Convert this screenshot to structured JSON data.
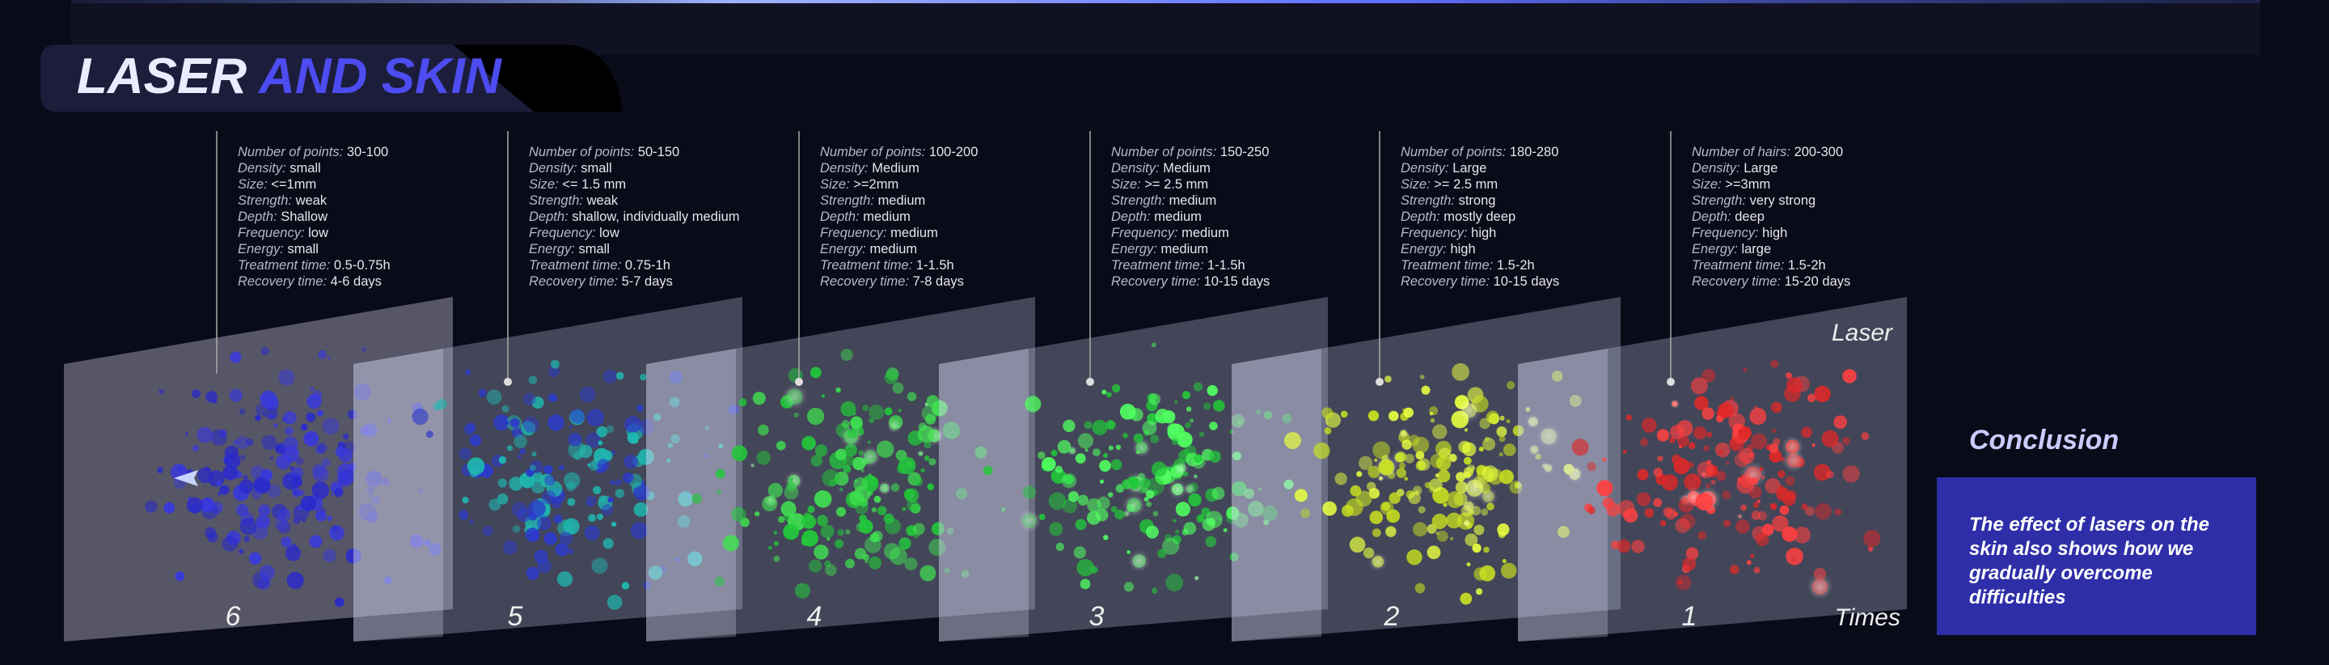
{
  "header": {
    "title_part1": "LASER",
    "title_part2": "AND SKIN"
  },
  "labels": {
    "laser": "Laser",
    "times": "Times"
  },
  "panels": [
    {
      "number": "6",
      "stats": [
        [
          "Number of points:",
          "30-100"
        ],
        [
          "Density:",
          "small"
        ],
        [
          "Size:",
          "<=1mm"
        ],
        [
          "Strength:",
          "weak"
        ],
        [
          "Depth:",
          "Shallow"
        ],
        [
          "Frequency:",
          "low"
        ],
        [
          "Energy:",
          "small"
        ],
        [
          "Treatment time:",
          "0.5-0.75h"
        ],
        [
          "Recovery time:",
          "4-6 days"
        ]
      ]
    },
    {
      "number": "5",
      "stats": [
        [
          "Number of points:",
          "50-150"
        ],
        [
          "Density:",
          "small"
        ],
        [
          "Size:",
          "<= 1.5 mm"
        ],
        [
          "Strength:",
          "weak"
        ],
        [
          "Depth:",
          "shallow, individually medium"
        ],
        [
          "Frequency:",
          "low"
        ],
        [
          "Energy:",
          "small"
        ],
        [
          "Treatment time:",
          "0.75-1h"
        ],
        [
          "Recovery time:",
          "5-7 days"
        ]
      ]
    },
    {
      "number": "4",
      "stats": [
        [
          "Number of points:",
          "100-200"
        ],
        [
          "Density:",
          "Medium"
        ],
        [
          "Size:",
          ">=2mm"
        ],
        [
          "Strength:",
          "medium"
        ],
        [
          "Depth:",
          "medium"
        ],
        [
          "Frequency:",
          "medium"
        ],
        [
          "Energy:",
          "medium"
        ],
        [
          "Treatment time:",
          "1-1.5h"
        ],
        [
          "Recovery time:",
          "7-8 days"
        ]
      ]
    },
    {
      "number": "3",
      "stats": [
        [
          "Number of points:",
          "150-250"
        ],
        [
          "Density:",
          "Medium"
        ],
        [
          "Size:",
          ">= 2.5 mm"
        ],
        [
          "Strength:",
          "medium"
        ],
        [
          "Depth:",
          "medium"
        ],
        [
          "Frequency:",
          "medium"
        ],
        [
          "Energy:",
          "medium"
        ],
        [
          "Treatment time:",
          "1-1.5h"
        ],
        [
          "Recovery time:",
          "10-15 days"
        ]
      ]
    },
    {
      "number": "2",
      "stats": [
        [
          "Number of points:",
          "180-280"
        ],
        [
          "Density:",
          "Large"
        ],
        [
          "Size:",
          ">= 2.5 mm"
        ],
        [
          "Strength:",
          "strong"
        ],
        [
          "Depth:",
          "mostly deep"
        ],
        [
          "Frequency:",
          "high"
        ],
        [
          "Energy:",
          "high"
        ],
        [
          "Treatment time:",
          "1.5-2h"
        ],
        [
          "Recovery time:",
          "10-15 days"
        ]
      ]
    },
    {
      "number": "1",
      "stats": [
        [
          "Number of hairs:",
          "200-300"
        ],
        [
          "Density:",
          "Large"
        ],
        [
          "Size:",
          ">=3mm"
        ],
        [
          "Strength:",
          "very strong"
        ],
        [
          "Depth:",
          "deep"
        ],
        [
          "Frequency:",
          "high"
        ],
        [
          "Energy:",
          "large"
        ],
        [
          "Treatment time:",
          "1.5-2h"
        ],
        [
          "Recovery time:",
          "15-20 days"
        ]
      ]
    }
  ],
  "conclusion": {
    "title": "Conclusion",
    "text": "The effect of lasers on the skin also shows how we gradually overcome difficulties"
  }
}
